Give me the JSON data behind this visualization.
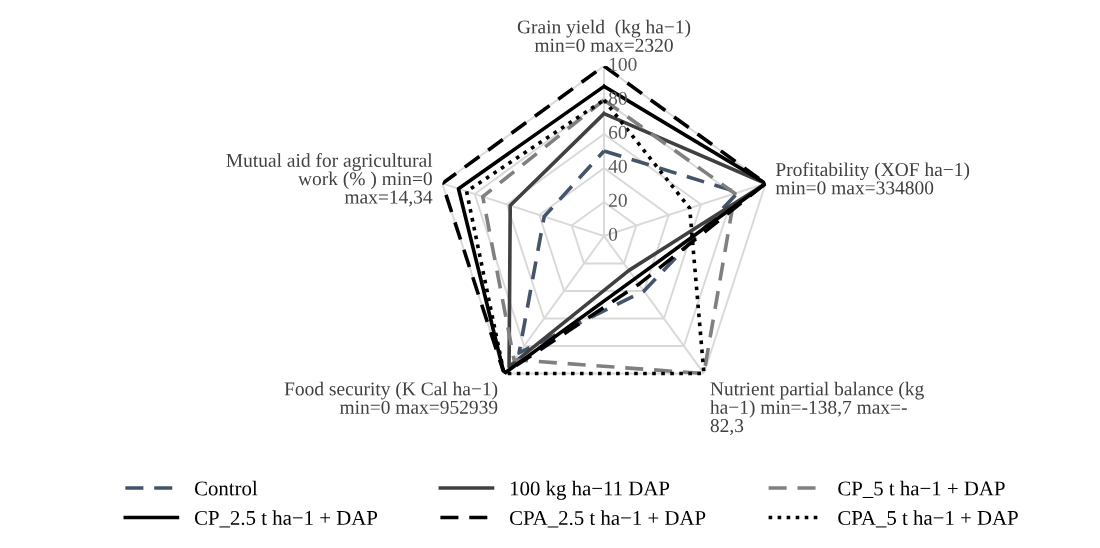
{
  "chart_data": {
    "type": "radar",
    "categories": [
      "Grain yield  (kg ha−1)\nmin=0 max=2320",
      "Profitability (XOF ha−1)\nmin=0 max=334800",
      "Nutrient partial balance (kg\nha−1) min=-138,7 max=-\n82,3",
      "Food security (K Cal ha−1)\nmin=0 max=952939",
      "Mutual aid for agricultural\nwork (% ) min=0\nmax=14,34"
    ],
    "ylim": [
      0,
      100
    ],
    "yticks": [
      0,
      20,
      40,
      60,
      80,
      100
    ],
    "grid": true,
    "legend": "bottom",
    "marker": "none",
    "series": [
      {
        "name": "Control",
        "color": "#44546a",
        "line_style": "dashed",
        "values": [
          50,
          83,
          40,
          85,
          37
        ]
      },
      {
        "name": "100 kg ha−11 DAP",
        "color": "#404040",
        "line_style": "solid",
        "values": [
          72,
          100,
          25,
          95,
          58
        ]
      },
      {
        "name": "CP_5 t ha−1 + DAP",
        "color": "#808080",
        "line_style": "dashed",
        "values": [
          80,
          81,
          100,
          90,
          75
        ]
      },
      {
        "name": "CP_2.5 t ha−1 + DAP",
        "color": "#000000",
        "line_style": "solid",
        "values": [
          88,
          100,
          31,
          100,
          90
        ]
      },
      {
        "name": "CPA_2.5 t ha−1 + DAP",
        "color": "#000000",
        "line_style": "dashed",
        "values": [
          100,
          100,
          35,
          100,
          100
        ]
      },
      {
        "name": "CPA_5 t ha−1 + DAP",
        "color": "#000000",
        "line_style": "dotted",
        "values": [
          80,
          53,
          100,
          100,
          85
        ]
      }
    ]
  }
}
